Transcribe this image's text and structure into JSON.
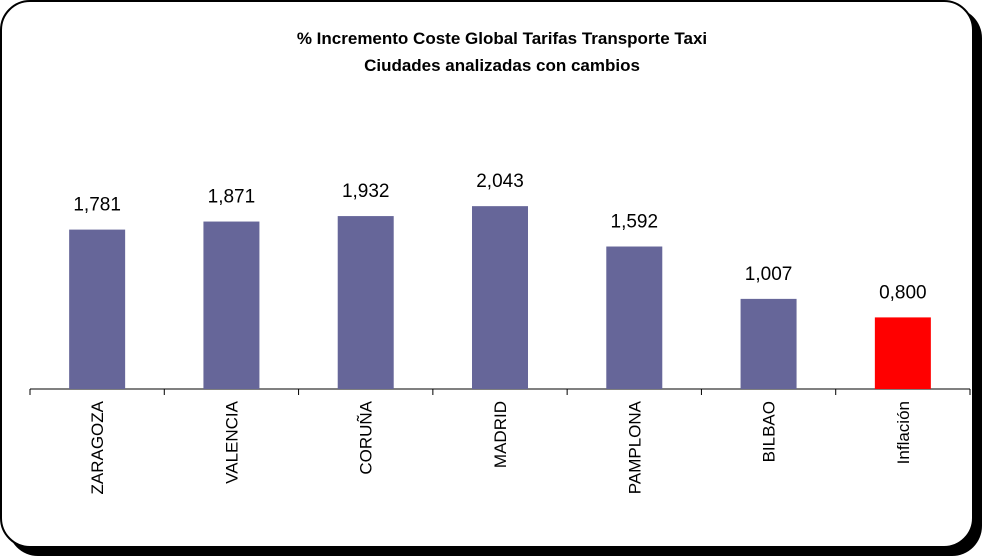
{
  "chart_data": {
    "type": "bar",
    "title": "% Incremento Coste Global Tarifas Transporte Taxi",
    "subtitle": "Ciudades analizadas con cambios",
    "categories": [
      "ZARAGOZA",
      "VALENCIA",
      "CORUÑA",
      "MADRID",
      "PAMPLONA",
      "BILBAO",
      "Inflación"
    ],
    "values": [
      1.781,
      1.871,
      1.932,
      2.043,
      1.592,
      1.007,
      0.8
    ],
    "value_labels": [
      "1,781",
      "1,871",
      "1,932",
      "2,043",
      "1,592",
      "1,007",
      "0,800"
    ],
    "bar_colors": [
      "#666699",
      "#666699",
      "#666699",
      "#666699",
      "#666699",
      "#666699",
      "#ff0000"
    ],
    "ylim": [
      0,
      2.3
    ],
    "grid": false,
    "legend": "none",
    "xlabel": "",
    "ylabel": ""
  }
}
